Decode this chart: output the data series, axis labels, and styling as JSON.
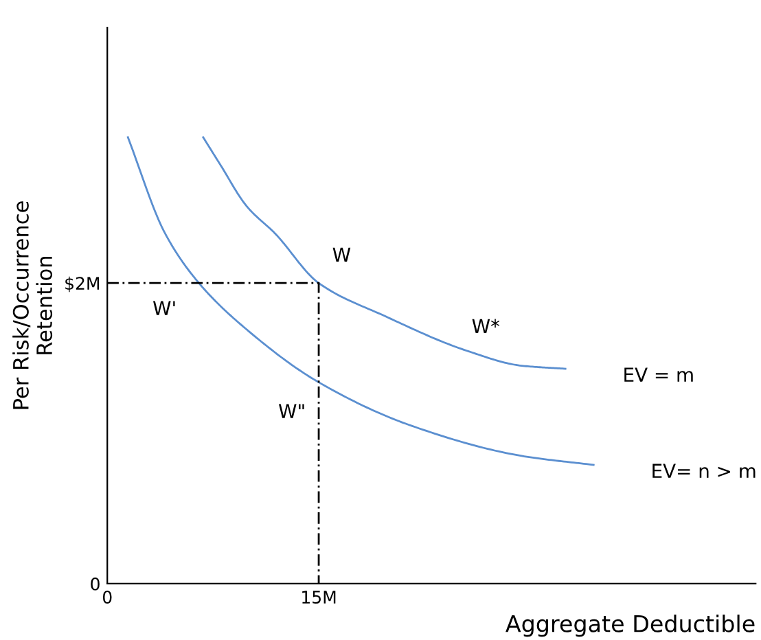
{
  "chart_data": {
    "type": "line",
    "xlabel": "Aggregate Deductible",
    "ylabel": "Per Risk/Occurrence\nRetention",
    "xlim": [
      0,
      46
    ],
    "ylim": [
      0,
      3.7
    ],
    "xticks": [
      {
        "value": 0,
        "label": "0"
      },
      {
        "value": 15,
        "label": "15M"
      }
    ],
    "yticks": [
      {
        "value": 0,
        "label": "0"
      },
      {
        "value": 2,
        "label": "$2M"
      }
    ],
    "grid": false,
    "legend": false,
    "marker": "none",
    "series": [
      {
        "name": "EV = m",
        "color": "#5b8fd0",
        "line_style": "solid",
        "x": [
          6.8,
          8.0,
          9.9,
          11.9,
          15,
          19.7,
          25.5,
          29.4,
          32.5
        ],
        "values": [
          2.97,
          2.79,
          2.51,
          2.33,
          2.0,
          1.78,
          1.55,
          1.45,
          1.43
        ]
      },
      {
        "name": "EV= n > m",
        "color": "#5b8fd0",
        "line_style": "solid",
        "x": [
          1.46,
          4.1,
          6.5,
          9.9,
          15,
          21.6,
          29.4,
          34.5
        ],
        "values": [
          2.97,
          2.33,
          2.0,
          1.69,
          1.34,
          1.05,
          0.85,
          0.79
        ]
      },
      {
        "color": "#000000",
        "line_style": "dashed",
        "x": [
          0,
          15,
          15
        ],
        "values": [
          2,
          2,
          0
        ]
      }
    ],
    "annotations": [
      {
        "text": "W",
        "x": 15,
        "y": 2.0
      },
      {
        "text": "W'",
        "x": 6.5,
        "y": 2.0
      },
      {
        "text": "W*",
        "x": 25.5,
        "y": 1.55
      },
      {
        "text": "W\"",
        "x": 15,
        "y": 1.34
      }
    ]
  }
}
